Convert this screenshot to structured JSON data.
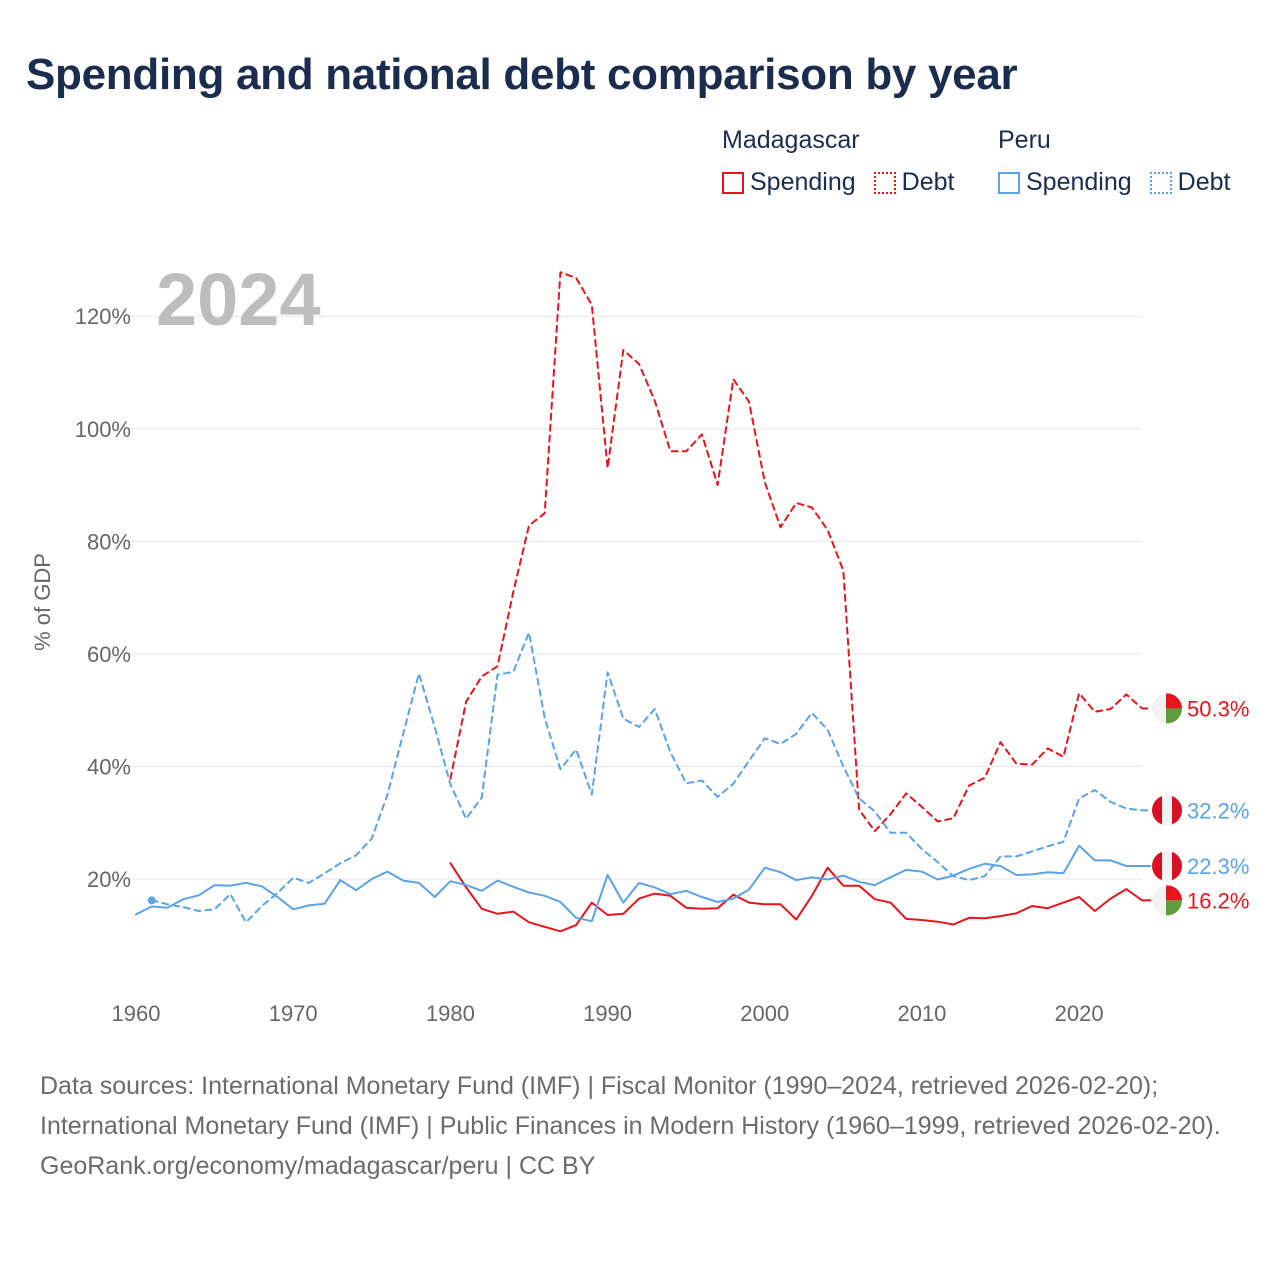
{
  "title": "Spending and national debt comparison by year",
  "legend": {
    "madagascar": {
      "name": "Madagascar",
      "spending": "Spending",
      "debt": "Debt"
    },
    "peru": {
      "name": "Peru",
      "spending": "Spending",
      "debt": "Debt"
    }
  },
  "year_label": "2024",
  "footer": {
    "sources": "Data sources: International Monetary Fund (IMF) | Fiscal Monitor (1990–2024, retrieved 2026-02-20); International Monetary Fund (IMF) | Public Finances in Modern History (1960–1999, retrieved 2026-02-20).",
    "credit": "GeoRank.org/economy/madagascar/peru | CC BY"
  },
  "colors": {
    "madagascar": "#e8141c",
    "peru": "#5ba3e6",
    "grid": "#e6e6e6",
    "axis_text": "#666666",
    "year_label": "#bdbdbd"
  },
  "chart_data": {
    "type": "line",
    "title": "Spending and national debt comparison by year",
    "ylabel": "% of GDP",
    "xlabel": "",
    "xlim": [
      1960,
      2024
    ],
    "ylim": [
      0,
      130
    ],
    "x_ticks": [
      1960,
      1970,
      1980,
      1990,
      2000,
      2010,
      2020
    ],
    "y_ticks": [
      20,
      40,
      60,
      80,
      100,
      120
    ],
    "y_tick_labels": [
      "20%",
      "40%",
      "60%",
      "80%",
      "100%",
      "120%"
    ],
    "grid": true,
    "series": [
      {
        "name": "Madagascar Spending",
        "country": "madagascar",
        "style": "solid",
        "end_label": "16.2%",
        "points": [
          [
            1980,
            22.8
          ],
          [
            1981,
            18.5
          ],
          [
            1982,
            14.7
          ],
          [
            1983,
            13.8
          ],
          [
            1984,
            14.2
          ],
          [
            1985,
            12.3
          ],
          [
            1986,
            11.5
          ],
          [
            1987,
            10.7
          ],
          [
            1988,
            11.8
          ],
          [
            1989,
            15.8
          ],
          [
            1990,
            13.6
          ],
          [
            1991,
            13.8
          ],
          [
            1992,
            16.5
          ],
          [
            1993,
            17.4
          ],
          [
            1994,
            17.0
          ],
          [
            1995,
            14.9
          ],
          [
            1996,
            14.7
          ],
          [
            1997,
            14.8
          ],
          [
            1998,
            17.2
          ],
          [
            1999,
            15.8
          ],
          [
            2000,
            15.5
          ],
          [
            2001,
            15.5
          ],
          [
            2002,
            12.8
          ],
          [
            2003,
            17.0
          ],
          [
            2004,
            22.0
          ],
          [
            2005,
            18.8
          ],
          [
            2006,
            18.8
          ],
          [
            2007,
            16.4
          ],
          [
            2008,
            15.8
          ],
          [
            2009,
            12.9
          ],
          [
            2010,
            12.7
          ],
          [
            2011,
            12.4
          ],
          [
            2012,
            11.9
          ],
          [
            2013,
            13.1
          ],
          [
            2014,
            13.0
          ],
          [
            2015,
            13.4
          ],
          [
            2016,
            13.9
          ],
          [
            2017,
            15.2
          ],
          [
            2018,
            14.8
          ],
          [
            2019,
            15.8
          ],
          [
            2020,
            16.8
          ],
          [
            2021,
            14.3
          ],
          [
            2022,
            16.5
          ],
          [
            2023,
            18.2
          ],
          [
            2024,
            16.2
          ]
        ]
      },
      {
        "name": "Madagascar Debt",
        "country": "madagascar",
        "style": "dashed",
        "end_label": "50.3%",
        "points": [
          [
            1980,
            37.8
          ],
          [
            1981,
            51.5
          ],
          [
            1982,
            56.0
          ],
          [
            1983,
            57.8
          ],
          [
            1984,
            71.0
          ],
          [
            1985,
            82.8
          ],
          [
            1986,
            85.0
          ],
          [
            1987,
            127.8
          ],
          [
            1988,
            126.8
          ],
          [
            1989,
            122.0
          ],
          [
            1990,
            93.0
          ],
          [
            1991,
            114.0
          ],
          [
            1992,
            111.5
          ],
          [
            1993,
            105.0
          ],
          [
            1994,
            96.0
          ],
          [
            1995,
            96.0
          ],
          [
            1996,
            99.0
          ],
          [
            1997,
            90.0
          ],
          [
            1998,
            108.8
          ],
          [
            1999,
            104.8
          ],
          [
            2000,
            90.5
          ],
          [
            2001,
            82.5
          ],
          [
            2002,
            86.8
          ],
          [
            2003,
            86.0
          ],
          [
            2004,
            82.0
          ],
          [
            2005,
            74.8
          ],
          [
            2006,
            32.3
          ],
          [
            2007,
            28.5
          ],
          [
            2008,
            31.5
          ],
          [
            2009,
            35.2
          ],
          [
            2010,
            32.8
          ],
          [
            2011,
            30.2
          ],
          [
            2012,
            30.8
          ],
          [
            2013,
            36.6
          ],
          [
            2014,
            38.0
          ],
          [
            2015,
            44.3
          ],
          [
            2016,
            40.5
          ],
          [
            2017,
            40.3
          ],
          [
            2018,
            43.2
          ],
          [
            2019,
            41.7
          ],
          [
            2020,
            53.0
          ],
          [
            2021,
            49.7
          ],
          [
            2022,
            50.2
          ],
          [
            2023,
            52.8
          ],
          [
            2024,
            50.3
          ]
        ]
      },
      {
        "name": "Peru Spending",
        "country": "peru",
        "style": "solid",
        "end_label": "22.3%",
        "points": [
          [
            1960,
            13.7
          ],
          [
            1961,
            15.1
          ],
          [
            1962,
            14.9
          ],
          [
            1963,
            16.4
          ],
          [
            1964,
            17.1
          ],
          [
            1965,
            18.9
          ],
          [
            1966,
            18.8
          ],
          [
            1967,
            19.3
          ],
          [
            1968,
            18.7
          ],
          [
            1969,
            16.8
          ],
          [
            1970,
            14.6
          ],
          [
            1971,
            15.3
          ],
          [
            1972,
            15.6
          ],
          [
            1973,
            19.8
          ],
          [
            1974,
            18.0
          ],
          [
            1975,
            20.0
          ],
          [
            1976,
            21.3
          ],
          [
            1977,
            19.7
          ],
          [
            1978,
            19.3
          ],
          [
            1979,
            16.8
          ],
          [
            1980,
            19.6
          ],
          [
            1981,
            18.9
          ],
          [
            1982,
            17.9
          ],
          [
            1983,
            19.7
          ],
          [
            1984,
            18.6
          ],
          [
            1985,
            17.6
          ],
          [
            1986,
            17.0
          ],
          [
            1987,
            15.9
          ],
          [
            1988,
            13.1
          ],
          [
            1989,
            12.5
          ],
          [
            1990,
            20.7
          ],
          [
            1991,
            15.8
          ],
          [
            1992,
            19.3
          ],
          [
            1993,
            18.5
          ],
          [
            1994,
            17.3
          ],
          [
            1995,
            17.9
          ],
          [
            1996,
            16.8
          ],
          [
            1997,
            15.9
          ],
          [
            1998,
            16.5
          ],
          [
            1999,
            18.1
          ],
          [
            2000,
            22.0
          ],
          [
            2001,
            21.2
          ],
          [
            2002,
            19.8
          ],
          [
            2003,
            20.3
          ],
          [
            2004,
            19.9
          ],
          [
            2005,
            20.6
          ],
          [
            2006,
            19.5
          ],
          [
            2007,
            18.9
          ],
          [
            2008,
            20.3
          ],
          [
            2009,
            21.6
          ],
          [
            2010,
            21.3
          ],
          [
            2011,
            19.9
          ],
          [
            2012,
            20.6
          ],
          [
            2013,
            21.8
          ],
          [
            2014,
            22.7
          ],
          [
            2015,
            22.3
          ],
          [
            2016,
            20.7
          ],
          [
            2017,
            20.8
          ],
          [
            2018,
            21.2
          ],
          [
            2019,
            21.0
          ],
          [
            2020,
            25.9
          ],
          [
            2021,
            23.3
          ],
          [
            2022,
            23.3
          ],
          [
            2023,
            22.3
          ],
          [
            2024,
            22.3
          ]
        ]
      },
      {
        "name": "Peru Debt",
        "country": "peru",
        "style": "dashed",
        "end_label": "32.2%",
        "points": [
          [
            1961,
            16.2
          ],
          [
            1962,
            15.5
          ],
          [
            1963,
            15.0
          ],
          [
            1964,
            14.3
          ],
          [
            1965,
            14.6
          ],
          [
            1966,
            17.3
          ],
          [
            1967,
            12.3
          ],
          [
            1968,
            15.2
          ],
          [
            1969,
            17.5
          ],
          [
            1970,
            20.2
          ],
          [
            1971,
            19.3
          ],
          [
            1972,
            21.0
          ],
          [
            1973,
            22.8
          ],
          [
            1974,
            24.2
          ],
          [
            1975,
            27.2
          ],
          [
            1976,
            35.0
          ],
          [
            1977,
            45.8
          ],
          [
            1978,
            56.5
          ],
          [
            1979,
            47.0
          ],
          [
            1980,
            36.8
          ],
          [
            1981,
            30.7
          ],
          [
            1982,
            34.5
          ],
          [
            1983,
            56.3
          ],
          [
            1984,
            56.8
          ],
          [
            1985,
            63.8
          ],
          [
            1986,
            48.6
          ],
          [
            1987,
            39.5
          ],
          [
            1988,
            43.0
          ],
          [
            1989,
            35.0
          ],
          [
            1990,
            56.7
          ],
          [
            1991,
            48.5
          ],
          [
            1992,
            47.0
          ],
          [
            1993,
            50.2
          ],
          [
            1994,
            42.5
          ],
          [
            1995,
            37.0
          ],
          [
            1996,
            37.5
          ],
          [
            1997,
            34.6
          ],
          [
            1998,
            36.9
          ],
          [
            1999,
            41.0
          ],
          [
            2000,
            45.0
          ],
          [
            2001,
            44.0
          ],
          [
            2002,
            45.8
          ],
          [
            2003,
            49.5
          ],
          [
            2004,
            46.5
          ],
          [
            2005,
            40.0
          ],
          [
            2006,
            34.3
          ],
          [
            2007,
            32.0
          ],
          [
            2008,
            28.2
          ],
          [
            2009,
            28.2
          ],
          [
            2010,
            25.3
          ],
          [
            2011,
            23.0
          ],
          [
            2012,
            20.5
          ],
          [
            2013,
            19.8
          ],
          [
            2014,
            20.5
          ],
          [
            2015,
            24.0
          ],
          [
            2016,
            24.0
          ],
          [
            2017,
            24.9
          ],
          [
            2018,
            25.8
          ],
          [
            2019,
            26.6
          ],
          [
            2020,
            34.3
          ],
          [
            2021,
            35.8
          ],
          [
            2022,
            33.7
          ],
          [
            2023,
            32.5
          ],
          [
            2024,
            32.2
          ]
        ]
      }
    ]
  }
}
